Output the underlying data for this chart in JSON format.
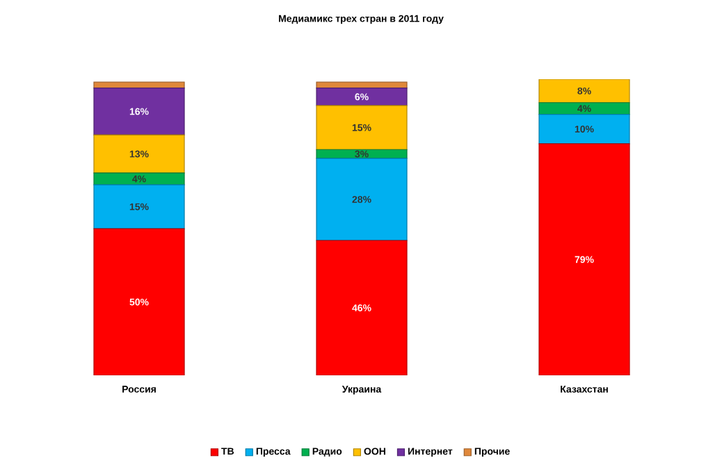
{
  "chart_data": {
    "type": "bar",
    "title": "Медиамикс трех стран в 2011 году",
    "stacked": true,
    "legend": "bottom",
    "categories": [
      "Россия",
      "Украина",
      "Казахстан"
    ],
    "series": [
      {
        "name": "ТВ",
        "color": "#ff0000",
        "values": [
          50,
          46,
          79
        ],
        "value_labels": [
          "50%",
          "46%",
          "79%"
        ]
      },
      {
        "name": "Пресса",
        "color": "#00b0f0",
        "values": [
          15,
          28,
          10
        ],
        "value_labels": [
          "15%",
          "28%",
          "10%"
        ]
      },
      {
        "name": "Радио",
        "color": "#00b050",
        "values": [
          4,
          3,
          4
        ],
        "value_labels": [
          "4%",
          "3%",
          "4%"
        ]
      },
      {
        "name": "ООН",
        "color": "#ffc000",
        "values": [
          13,
          15,
          8
        ],
        "value_labels": [
          "13%",
          "15%",
          "8%"
        ]
      },
      {
        "name": "Интернет",
        "color": "#7030a0",
        "values": [
          16,
          6,
          null
        ],
        "value_labels": [
          "16%",
          "6%",
          null
        ]
      },
      {
        "name": "Прочие",
        "color": "#e0883a",
        "values": [
          2,
          2,
          null
        ],
        "value_labels": [
          null,
          null,
          null
        ]
      }
    ]
  }
}
